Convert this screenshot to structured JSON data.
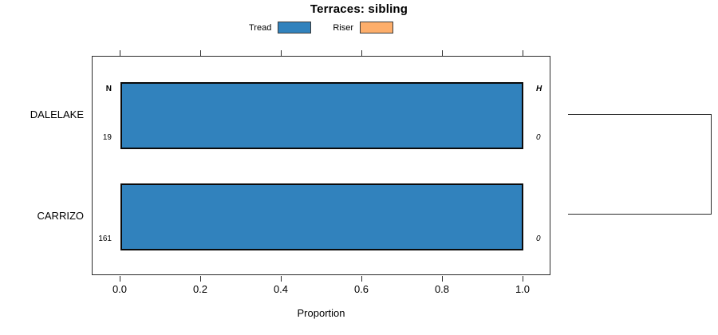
{
  "chart_data": {
    "type": "bar",
    "orientation": "horizontal",
    "title": "Terraces: sibling",
    "xlabel": "Proportion",
    "categories": [
      "DALELAKE",
      "CARRIZO"
    ],
    "series": [
      {
        "name": "Tread",
        "color": "#3182BD",
        "values": [
          1.0,
          1.0
        ]
      },
      {
        "name": "Riser",
        "color": "#FDAE6B",
        "values": [
          0.0,
          0.0
        ]
      }
    ],
    "row_annotations": {
      "n_header": "N",
      "h_header": "H",
      "N": [
        "19",
        "161"
      ],
      "H": [
        "0",
        "0"
      ]
    },
    "xlim": [
      0.0,
      1.0
    ],
    "xtick_labels": [
      "0.0",
      "0.2",
      "0.4",
      "0.6",
      "0.8",
      "1.0"
    ],
    "grid": false,
    "legend_position": "top-center",
    "frame_color": "#2b2b2b",
    "sibling_bracket": "right-side bracket linking DALELAKE and CARRIZO rows"
  }
}
